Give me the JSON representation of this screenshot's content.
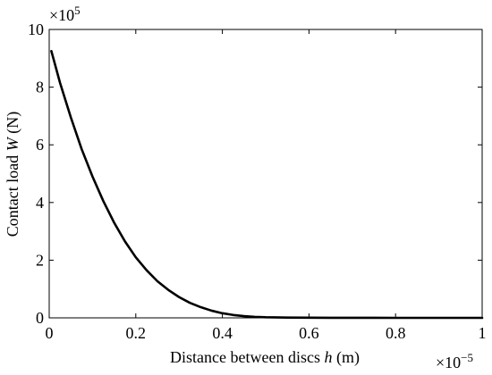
{
  "chart_data": {
    "type": "line",
    "xlabel_parts": [
      "Distance between discs ",
      "h",
      " (m)"
    ],
    "ylabel_parts": [
      "Contact load ",
      "W",
      " (N)"
    ],
    "x_multiplier": {
      "base": "×10",
      "exponent": "−5"
    },
    "y_multiplier": {
      "base": "×10",
      "exponent": "5"
    },
    "xlim": [
      0,
      1
    ],
    "ylim": [
      0,
      10
    ],
    "x_ticks": [
      0,
      0.2,
      0.4,
      0.6,
      0.8,
      1
    ],
    "x_tick_labels": [
      "0",
      "0.2",
      "0.4",
      "0.6",
      "0.8",
      "1"
    ],
    "y_ticks": [
      0,
      2,
      4,
      6,
      8,
      10
    ],
    "y_tick_labels": [
      "0",
      "2",
      "4",
      "6",
      "8",
      "10"
    ],
    "grid": false,
    "series": [
      {
        "color": "#000000",
        "x": [
          0.005,
          0.025,
          0.05,
          0.075,
          0.1,
          0.125,
          0.15,
          0.175,
          0.2,
          0.225,
          0.25,
          0.275,
          0.3,
          0.325,
          0.35,
          0.375,
          0.4,
          0.425,
          0.45,
          0.475,
          0.5,
          0.55,
          0.6,
          0.65,
          0.7,
          0.75,
          0.8,
          0.85,
          0.9,
          0.95,
          1.0
        ],
        "y": [
          9.25,
          8.15,
          6.95,
          5.85,
          4.9,
          4.05,
          3.3,
          2.65,
          2.1,
          1.65,
          1.27,
          0.97,
          0.72,
          0.52,
          0.37,
          0.25,
          0.16,
          0.1,
          0.06,
          0.035,
          0.02,
          0.01,
          0.005,
          0.002,
          0.001,
          0.0005,
          0.0,
          0.0,
          0.0,
          0.0,
          0.0
        ]
      }
    ]
  }
}
